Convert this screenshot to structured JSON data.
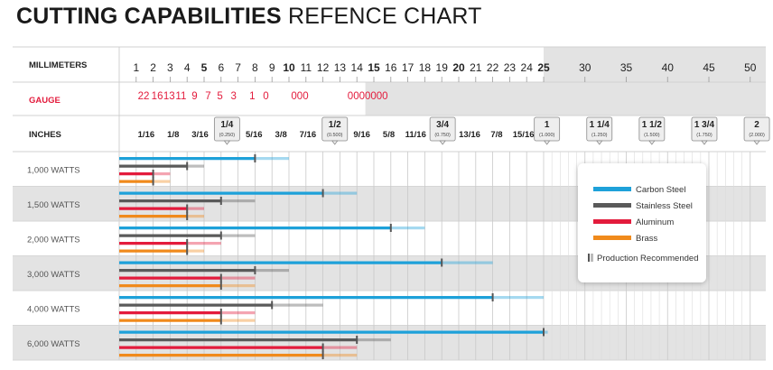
{
  "title_bold": "CUTTING CAPABILITIES",
  "title_rest": " REFENCE CHART",
  "rows_header": {
    "millimeters": "MILLIMETERS",
    "gauge": "GAUGE",
    "inches": "INCHES"
  },
  "colors": {
    "carbon_steel": "#1ea1d9",
    "stainless_steel": "#5a5a5a",
    "aluminum": "#e31b3c",
    "brass": "#f08a1c",
    "gauge_text": "#e31b3c",
    "band": "#e3e3e3"
  },
  "chart_data": {
    "type": "bar",
    "title": "CUTTING CAPABILITIES REFENCE CHART",
    "axis": {
      "millimeters_ticks": [
        "1",
        "2",
        "3",
        "4",
        "5",
        "6",
        "7",
        "8",
        "9",
        "10",
        "11",
        "12",
        "13",
        "14",
        "15",
        "16",
        "17",
        "18",
        "19",
        "20",
        "21",
        "22",
        "23",
        "24",
        "25",
        "30",
        "35",
        "40",
        "45",
        "50"
      ],
      "millimeters_bold": [
        "5",
        "10",
        "15",
        "20",
        "25"
      ],
      "gauge_ticks": [
        "22",
        "16",
        "13",
        "11",
        "9",
        "7",
        "5",
        "3",
        "1",
        "0",
        "000",
        "0000000"
      ],
      "gauge_positions_mm": [
        0.8,
        1.6,
        2.3,
        3.0,
        3.8,
        4.6,
        5.3,
        6.1,
        7.2,
        8.0,
        10.0,
        14.0
      ],
      "inch_ticks": [
        {
          "label": "1/16",
          "mm": 1.59,
          "boxed": false
        },
        {
          "label": "1/8",
          "mm": 3.18,
          "boxed": false
        },
        {
          "label": "3/16",
          "mm": 4.76,
          "boxed": false
        },
        {
          "label": "1/4",
          "sub": "(0.250)",
          "mm": 6.35,
          "boxed": true
        },
        {
          "label": "5/16",
          "mm": 7.94,
          "boxed": false
        },
        {
          "label": "3/8",
          "mm": 9.53,
          "boxed": false
        },
        {
          "label": "7/16",
          "mm": 11.11,
          "boxed": false
        },
        {
          "label": "1/2",
          "sub": "(0.500)",
          "mm": 12.7,
          "boxed": true
        },
        {
          "label": "9/16",
          "mm": 14.29,
          "boxed": false
        },
        {
          "label": "5/8",
          "mm": 15.88,
          "boxed": false
        },
        {
          "label": "11/16",
          "mm": 17.46,
          "boxed": false
        },
        {
          "label": "3/4",
          "sub": "(0.750)",
          "mm": 19.05,
          "boxed": true
        },
        {
          "label": "13/16",
          "mm": 20.64,
          "boxed": false
        },
        {
          "label": "7/8",
          "mm": 22.23,
          "boxed": false
        },
        {
          "label": "15/16",
          "mm": 23.81,
          "boxed": false
        },
        {
          "label": "1",
          "sub": "(1.000)",
          "mm": 25.4,
          "boxed": true
        },
        {
          "label": "1 1/4",
          "sub": "(1.250)",
          "mm": 31.75,
          "boxed": true
        },
        {
          "label": "1 1/2",
          "sub": "(1.500)",
          "mm": 38.1,
          "boxed": true
        },
        {
          "label": "1 3/4",
          "sub": "(1.750)",
          "mm": 44.45,
          "boxed": true
        },
        {
          "label": "2",
          "sub": "(2.000)",
          "mm": 50.8,
          "boxed": true
        }
      ]
    },
    "series": [
      {
        "name": "Carbon Steel",
        "key": "carbon_steel"
      },
      {
        "name": "Stainless Steel",
        "key": "stainless_steel"
      },
      {
        "name": "Aluminum",
        "key": "aluminum"
      },
      {
        "name": "Brass",
        "key": "brass"
      }
    ],
    "categories": [
      {
        "label": "1,000 WATTS",
        "values": {
          "carbon_steel": {
            "max_mm": 10,
            "recommended_mm": 8
          },
          "stainless_steel": {
            "max_mm": 5,
            "recommended_mm": 4
          },
          "aluminum": {
            "max_mm": 3,
            "recommended_mm": 2
          },
          "brass": {
            "max_mm": 3,
            "recommended_mm": 2
          }
        }
      },
      {
        "label": "1,500 WATTS",
        "values": {
          "carbon_steel": {
            "max_mm": 14,
            "recommended_mm": 12
          },
          "stainless_steel": {
            "max_mm": 8,
            "recommended_mm": 6
          },
          "aluminum": {
            "max_mm": 5,
            "recommended_mm": 4
          },
          "brass": {
            "max_mm": 5,
            "recommended_mm": 4
          }
        }
      },
      {
        "label": "2,000 WATTS",
        "values": {
          "carbon_steel": {
            "max_mm": 18,
            "recommended_mm": 16
          },
          "stainless_steel": {
            "max_mm": 8,
            "recommended_mm": 6
          },
          "aluminum": {
            "max_mm": 6,
            "recommended_mm": 4
          },
          "brass": {
            "max_mm": 5,
            "recommended_mm": 4
          }
        }
      },
      {
        "label": "3,000 WATTS",
        "values": {
          "carbon_steel": {
            "max_mm": 22,
            "recommended_mm": 19
          },
          "stainless_steel": {
            "max_mm": 10,
            "recommended_mm": 8
          },
          "aluminum": {
            "max_mm": 8,
            "recommended_mm": 6
          },
          "brass": {
            "max_mm": 8,
            "recommended_mm": 6
          }
        }
      },
      {
        "label": "4,000 WATTS",
        "values": {
          "carbon_steel": {
            "max_mm": 25,
            "recommended_mm": 22
          },
          "stainless_steel": {
            "max_mm": 12,
            "recommended_mm": 9
          },
          "aluminum": {
            "max_mm": 8,
            "recommended_mm": 6
          },
          "brass": {
            "max_mm": 8,
            "recommended_mm": 6
          }
        }
      },
      {
        "label": "6,000 WATTS",
        "values": {
          "carbon_steel": {
            "max_mm": 25.5,
            "recommended_mm": 25
          },
          "stainless_steel": {
            "max_mm": 16,
            "recommended_mm": 14
          },
          "aluminum": {
            "max_mm": 14,
            "recommended_mm": 12
          },
          "brass": {
            "max_mm": 14,
            "recommended_mm": 12
          }
        }
      }
    ],
    "legend": {
      "placement": "right",
      "items": [
        "Carbon Steel",
        "Stainless Steel",
        "Aluminum",
        "Brass"
      ],
      "production_label": "Production Recommended"
    }
  }
}
